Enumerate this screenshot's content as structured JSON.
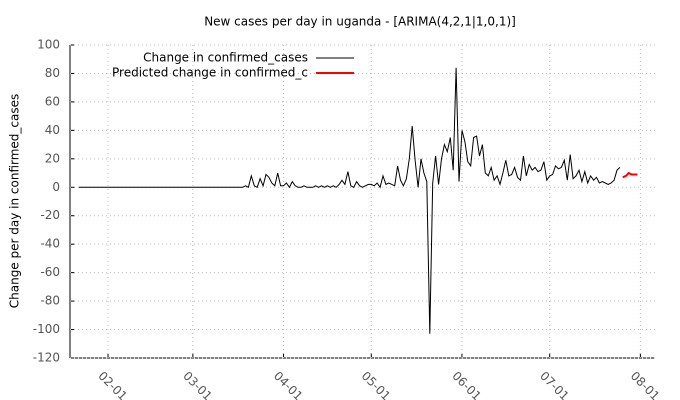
{
  "chart_data": {
    "type": "line",
    "title": "New cases per day in uganda -  [ARIMA(4,2,1|1,0,1)]",
    "y_label": "Change per day in confirmed_cases",
    "grid": true,
    "legend": "top-left",
    "xlim": [
      "01-19",
      "08-06"
    ],
    "xticks": [
      "02-01",
      "03-01",
      "04-01",
      "05-01",
      "06-01",
      "07-01",
      "08-01"
    ],
    "ylim": [
      -120,
      100
    ],
    "yticks": [
      -120,
      -100,
      -80,
      -60,
      -40,
      -20,
      0,
      20,
      40,
      60,
      80,
      100
    ],
    "series": [
      {
        "name": "Change in confirmed_cases",
        "color": "#000000",
        "x": [
          "01-22",
          "03-18",
          "03-19",
          "03-20",
          "03-21",
          "03-22",
          "03-23",
          "03-24",
          "03-25",
          "03-26",
          "03-27",
          "03-28",
          "03-29",
          "03-30",
          "03-31",
          "04-01",
          "04-02",
          "04-03",
          "04-04",
          "04-05",
          "04-06",
          "04-07",
          "04-08",
          "04-09",
          "04-10",
          "04-11",
          "04-12",
          "04-13",
          "04-14",
          "04-15",
          "04-16",
          "04-17",
          "04-18",
          "04-19",
          "04-20",
          "04-21",
          "04-22",
          "04-23",
          "04-24",
          "04-25",
          "04-26",
          "04-27",
          "04-28",
          "04-29",
          "04-30",
          "05-01",
          "05-02",
          "05-03",
          "05-04",
          "05-05",
          "05-06",
          "05-07",
          "05-08",
          "05-09",
          "05-10",
          "05-11",
          "05-12",
          "05-13",
          "05-14",
          "05-15",
          "05-16",
          "05-17",
          "05-18",
          "05-19",
          "05-20",
          "05-21",
          "05-22",
          "05-23",
          "05-24",
          "05-25",
          "05-26",
          "05-27",
          "05-28",
          "05-29",
          "05-30",
          "05-31",
          "06-01",
          "06-02",
          "06-03",
          "06-04",
          "06-05",
          "06-06",
          "06-07",
          "06-08",
          "06-09",
          "06-10",
          "06-11",
          "06-12",
          "06-13",
          "06-14",
          "06-15",
          "06-16",
          "06-17",
          "06-18",
          "06-19",
          "06-20",
          "06-21",
          "06-22",
          "06-23",
          "06-24",
          "06-25",
          "06-26",
          "06-27",
          "06-28",
          "06-29",
          "06-30",
          "07-01",
          "07-02",
          "07-03",
          "07-04",
          "07-05",
          "07-06",
          "07-07",
          "07-08",
          "07-09",
          "07-10",
          "07-11",
          "07-12",
          "07-13",
          "07-14",
          "07-15",
          "07-16",
          "07-17",
          "07-18",
          "07-19",
          "07-20",
          "07-21",
          "07-22",
          "07-23",
          "07-24",
          "07-25"
        ],
        "values": [
          0,
          0,
          1,
          0,
          8,
          1,
          0,
          6,
          1,
          9,
          7,
          3,
          1,
          10,
          1,
          1,
          3,
          0,
          4,
          1,
          0,
          0,
          1,
          0,
          0,
          0,
          1,
          0,
          1,
          0,
          1,
          0,
          1,
          0,
          2,
          5,
          2,
          11,
          1,
          0,
          4,
          1,
          0,
          1,
          2,
          2,
          1,
          3,
          0,
          8,
          2,
          3,
          2,
          1,
          15,
          5,
          1,
          6,
          20,
          43,
          19,
          0,
          20,
          10,
          4,
          -103,
          3,
          22,
          2,
          20,
          30,
          25,
          35,
          12,
          84,
          4,
          40,
          32,
          18,
          15,
          35,
          36,
          22,
          30,
          10,
          8,
          14,
          5,
          8,
          2,
          10,
          19,
          8,
          9,
          14,
          7,
          5,
          22,
          8,
          16,
          12,
          14,
          11,
          12,
          18,
          5,
          8,
          9,
          15,
          13,
          14,
          19,
          5,
          23,
          6,
          8,
          12,
          4,
          11,
          3,
          8,
          5,
          7,
          3,
          4,
          3,
          2,
          3,
          5,
          12,
          14
        ]
      },
      {
        "name": "Predicted change in confirmed_c",
        "color": "#ff0000",
        "x": [
          "07-26",
          "07-27",
          "07-28",
          "07-29",
          "07-30",
          "07-31"
        ],
        "values": [
          7,
          8,
          10,
          9,
          9,
          9
        ]
      }
    ]
  }
}
